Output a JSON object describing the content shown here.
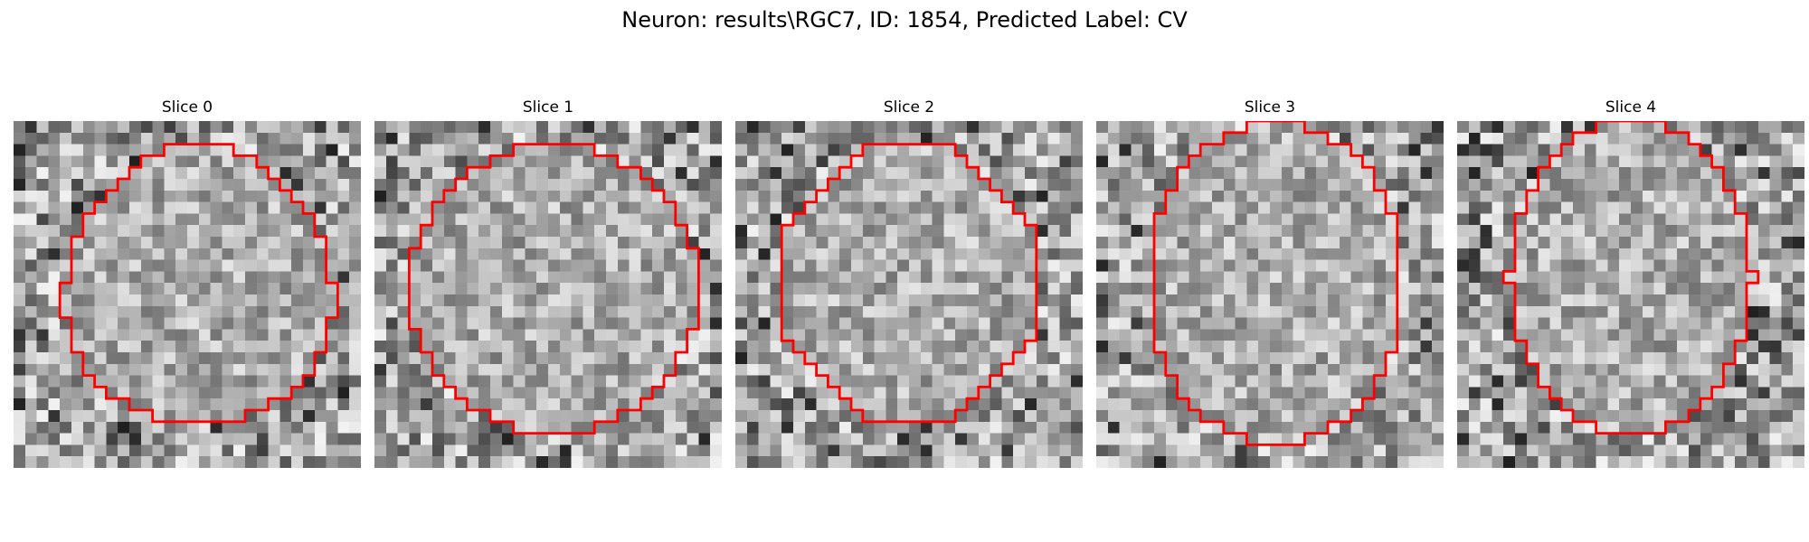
{
  "figure": {
    "title": "Neuron: results\\RGC7, ID: 1854, Predicted Label: CV"
  },
  "contour_color": "#ff0000",
  "colormap": "gray",
  "grid_size": 30,
  "slices": [
    {
      "title": "Slice 0",
      "seed": 11,
      "center": [
        16.0,
        14.0
      ],
      "radii": [
        11.5,
        12.0
      ],
      "shape": "blob"
    },
    {
      "title": "Slice 1",
      "seed": 23,
      "center": [
        15.5,
        14.5
      ],
      "radii": [
        12.5,
        12.5
      ],
      "shape": "round"
    },
    {
      "title": "Slice 2",
      "seed": 37,
      "center": [
        15.0,
        14.0
      ],
      "radii": [
        11.0,
        12.0
      ],
      "shape": "oct"
    },
    {
      "title": "Slice 3",
      "seed": 51,
      "center": [
        15.5,
        14.0
      ],
      "radii": [
        11.0,
        14.0
      ],
      "shape": "tall"
    },
    {
      "title": "Slice 4",
      "seed": 67,
      "center": [
        15.0,
        13.5
      ],
      "radii": [
        10.5,
        13.5
      ],
      "shape": "round"
    }
  ]
}
